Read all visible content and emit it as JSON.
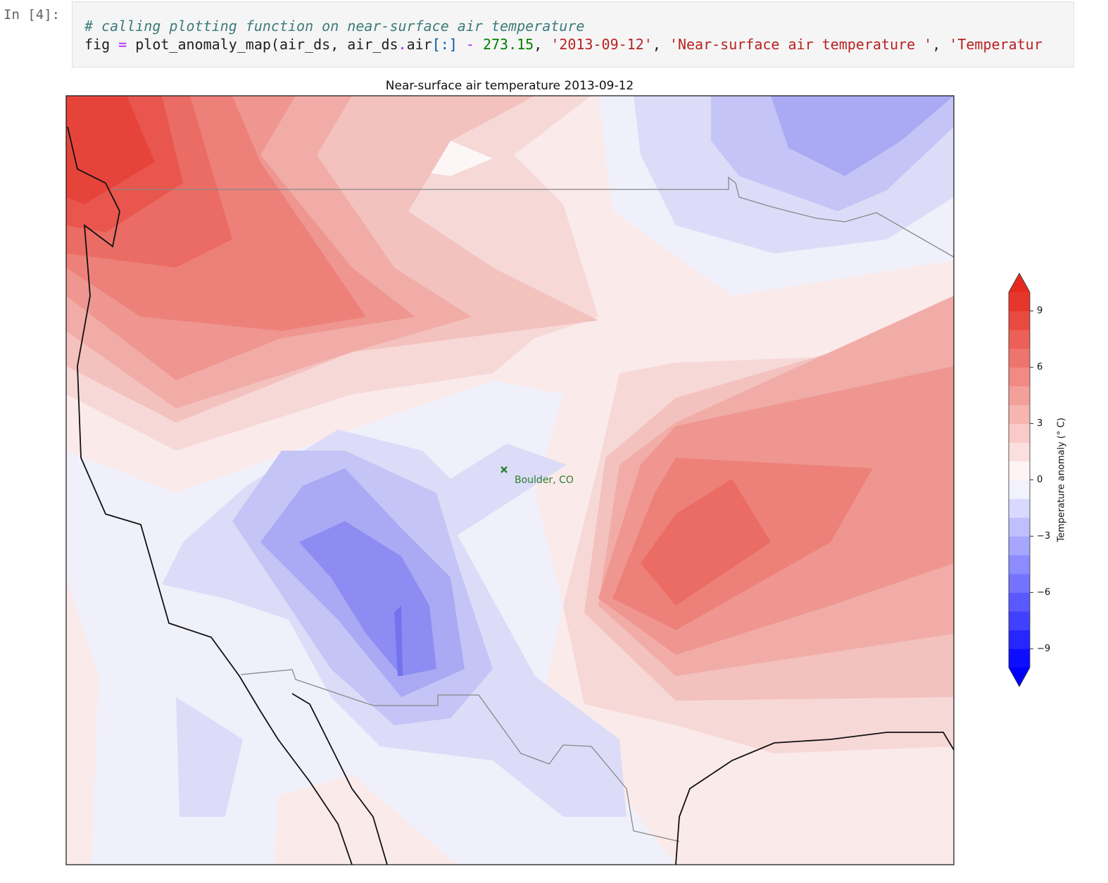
{
  "cell": {
    "prompt": "In [4]:",
    "code_lines": [
      [
        {
          "text": "# calling plotting function on near-surface air temperature",
          "color": "#3d7b7b"
        }
      ],
      [
        {
          "text": "fig ",
          "color": "#1f1f1f"
        },
        {
          "text": "=",
          "color": "#aa22ff"
        },
        {
          "text": " plot_anomaly_map(air_ds, air_ds",
          "color": "#1f1f1f"
        },
        {
          "text": ".",
          "color": "#aa22ff"
        },
        {
          "text": "air",
          "color": "#1f1f1f"
        },
        {
          "text": "[:] ",
          "color": "#0055aa"
        },
        {
          "text": "-",
          "color": "#aa22ff"
        },
        {
          "text": " ",
          "color": "#1f1f1f"
        },
        {
          "text": "273.15",
          "color": "#008000"
        },
        {
          "text": ", ",
          "color": "#1f1f1f"
        },
        {
          "text": "'2013-09-12'",
          "color": "#ba2121"
        },
        {
          "text": ", ",
          "color": "#1f1f1f"
        },
        {
          "text": "'Near-surface air temperature '",
          "color": "#ba2121"
        },
        {
          "text": ", ",
          "color": "#1f1f1f"
        },
        {
          "text": "'Temperatur",
          "color": "#ba2121"
        }
      ]
    ]
  },
  "figure": {
    "title": "Near-surface air temperature 2013-09-12",
    "marker_label": "Boulder, CO",
    "colorbar": {
      "label": "Temperature anomaly (° C)",
      "lim": [
        -10,
        10
      ],
      "levels": [
        -10,
        -9,
        -8,
        -7,
        -6,
        -5,
        -4,
        -3,
        -2,
        -1,
        0,
        1,
        2,
        3,
        4,
        5,
        6,
        7,
        8,
        9,
        10
      ],
      "ticks": [
        {
          "value": -9,
          "label": "−9"
        },
        {
          "value": -6,
          "label": "−6"
        },
        {
          "value": -3,
          "label": "−3"
        },
        0,
        3,
        6,
        9
      ],
      "colors": [
        "#0000ff",
        "#ffffff",
        "#e52b20"
      ],
      "extend": "both"
    }
  }
}
